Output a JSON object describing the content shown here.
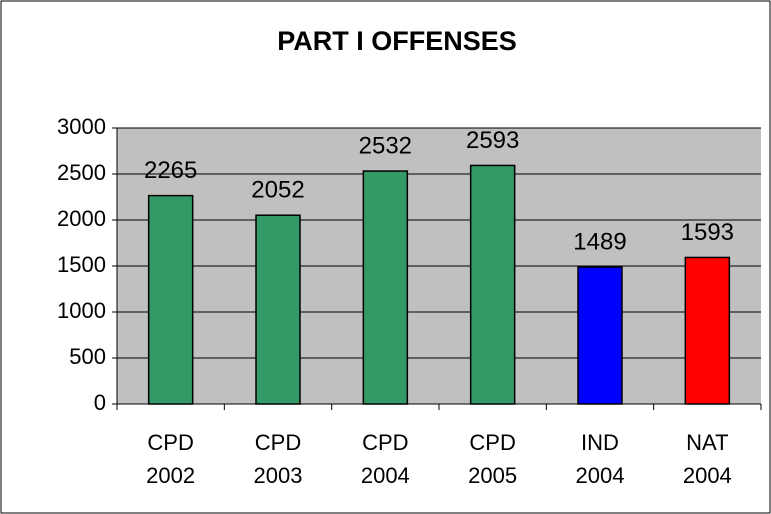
{
  "chart_data": {
    "type": "bar",
    "title": "PART I OFFENSES",
    "categories": [
      "CPD 2002",
      "CPD 2003",
      "CPD 2004",
      "CPD 2005",
      "IND 2004",
      "NAT 2004"
    ],
    "values": [
      2265,
      2052,
      2532,
      2593,
      1489,
      1593
    ],
    "colors": [
      "#339966",
      "#339966",
      "#339966",
      "#339966",
      "#0000ff",
      "#ff0000"
    ],
    "ylim": [
      0,
      3000
    ],
    "yticks": [
      0,
      500,
      1000,
      1500,
      2000,
      2500,
      3000
    ],
    "grid": true
  }
}
